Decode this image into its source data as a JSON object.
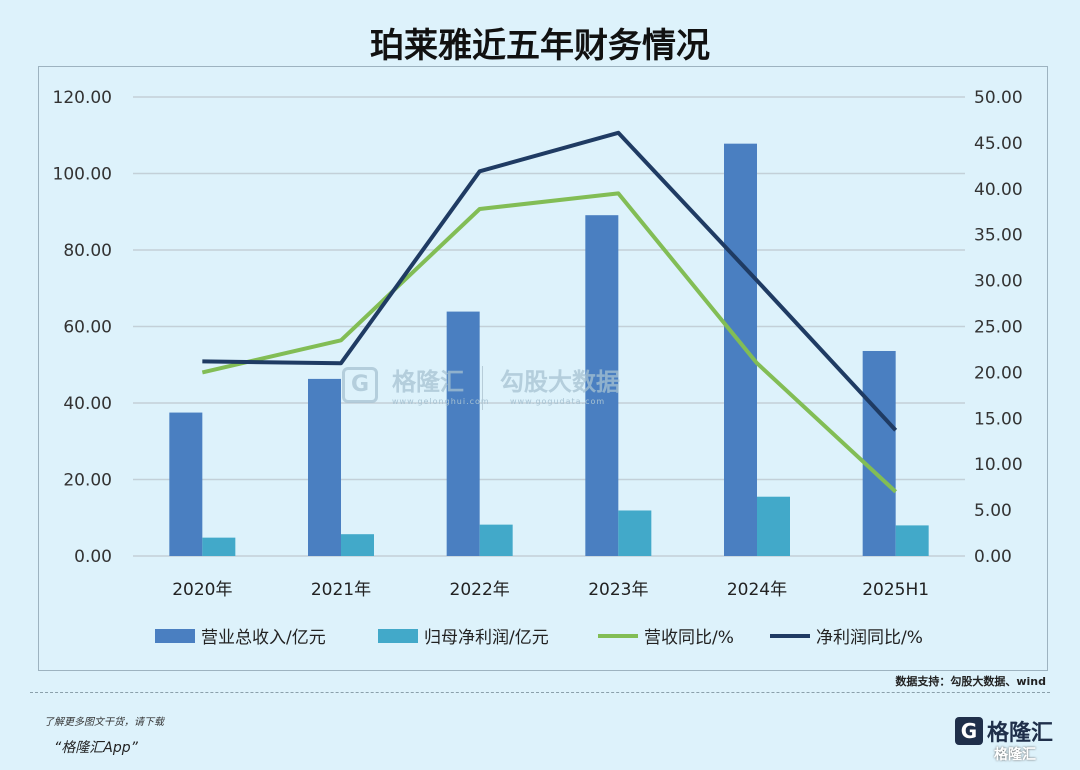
{
  "chart_data": {
    "type": "bar",
    "title": "珀莱雅近五年财务情况",
    "categories": [
      "2020年",
      "2021年",
      "2022年",
      "2023年",
      "2024年",
      "2025H1"
    ],
    "left_axis": {
      "min": 0,
      "max": 120,
      "ticks": [
        "0.00",
        "20.00",
        "40.00",
        "60.00",
        "80.00",
        "100.00",
        "120.00"
      ]
    },
    "right_axis": {
      "min": 0,
      "max": 50,
      "ticks": [
        "0.00",
        "5.00",
        "10.00",
        "15.00",
        "20.00",
        "25.00",
        "30.00",
        "35.00",
        "40.00",
        "45.00",
        "50.00"
      ]
    },
    "grid": true,
    "legend_position": "bottom",
    "series": [
      {
        "name": "营业总收入/亿元",
        "type": "bar",
        "axis": "left",
        "color": "#4a7fc1",
        "values": [
          37.5,
          46.3,
          63.9,
          89.1,
          107.8,
          53.6
        ]
      },
      {
        "name": "归母净利润/亿元",
        "type": "bar",
        "axis": "left",
        "color": "#42a9c9",
        "values": [
          4.8,
          5.7,
          8.2,
          11.9,
          15.5,
          8.0
        ]
      },
      {
        "name": "营收同比/%",
        "type": "line",
        "axis": "right",
        "color": "#82bd55",
        "values": [
          20.0,
          23.5,
          37.8,
          39.5,
          21.0,
          7.0
        ]
      },
      {
        "name": "净利润同比/%",
        "type": "line",
        "axis": "right",
        "color": "#1f3b63",
        "values": [
          21.2,
          21.0,
          41.9,
          46.1,
          30.0,
          13.7
        ]
      }
    ]
  },
  "source": "数据支持：勾股大数据、wind",
  "watermark": {
    "brand_left": "格隆汇",
    "brand_right": "勾股大数据",
    "sub_left": "www.gelonghui.com",
    "sub_right": "www.gogudata.com",
    "g_letter": "G"
  },
  "footer": {
    "note": "了解更多图文干货，请下载",
    "app": "“格隆汇App”",
    "brand_icon": "G",
    "brand_name": "格隆汇",
    "corner_watermark": "格隆汇"
  }
}
